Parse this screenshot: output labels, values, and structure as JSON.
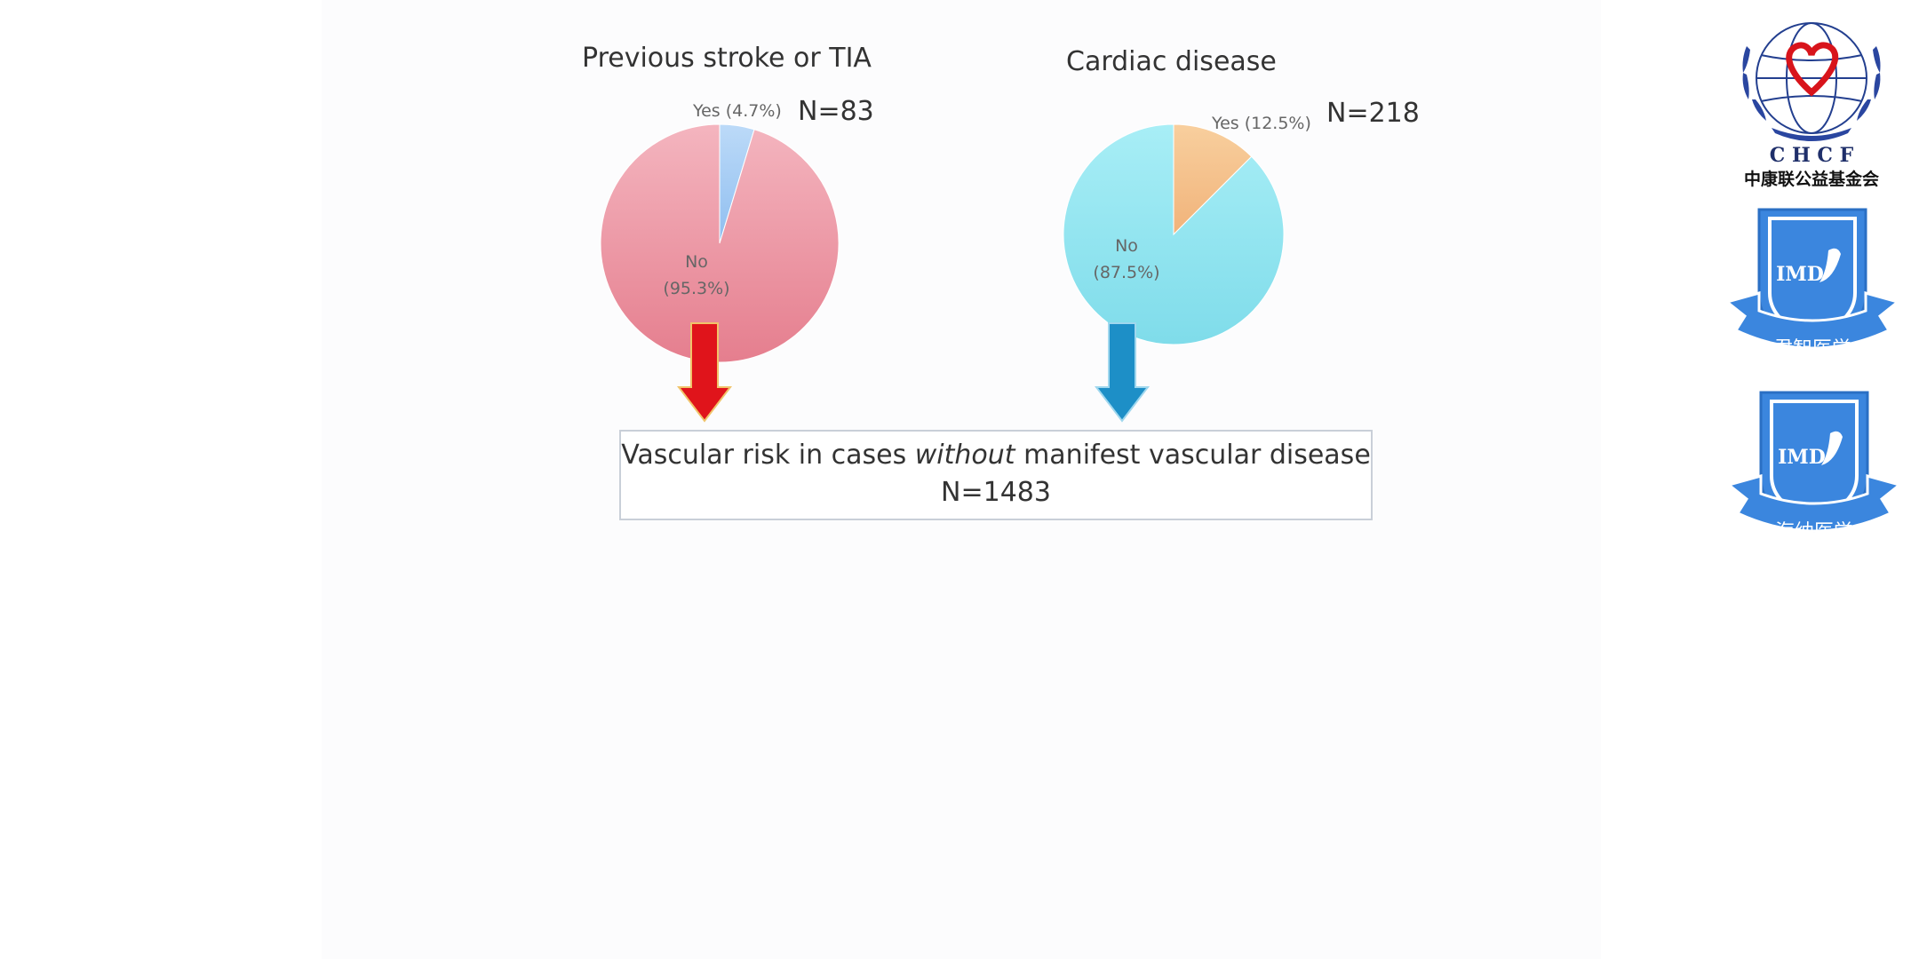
{
  "charts": {
    "stroke": {
      "title": "Previous stroke or TIA",
      "n_label": "N=83",
      "yes_label": "Yes (4.7%)",
      "no_label_line1": "No",
      "no_label_line2": "(95.3%)"
    },
    "cardiac": {
      "title": "Cardiac disease",
      "n_label": "N=218",
      "yes_label": "Yes (12.5%)",
      "no_label_line1": "No",
      "no_label_line2": "(87.5%)"
    }
  },
  "chart_data": [
    {
      "type": "pie",
      "title": "Previous stroke or TIA",
      "categories": [
        "Yes",
        "No"
      ],
      "values": [
        4.7,
        95.3
      ],
      "colors": [
        "#a9cdf6",
        "#ef9aa8"
      ],
      "n": 83
    },
    {
      "type": "pie",
      "title": "Cardiac disease",
      "categories": [
        "Yes",
        "No"
      ],
      "values": [
        12.5,
        87.5
      ],
      "colors": [
        "#f6c48e",
        "#8fe6f0"
      ],
      "n": 218
    }
  ],
  "result_box": {
    "text_before": "Vascular risk in cases ",
    "text_emphasis": "without",
    "text_after": " manifest vascular disease",
    "n_label": "N=1483"
  },
  "arrows": {
    "left_color": "#e0141b",
    "right_color": "#1d8fc7"
  },
  "logos": {
    "chcf_text": "C H C F",
    "chcf_name": "中康联公益基金会",
    "badge1_text": "IMD",
    "badge1_ribbon": "君智医学",
    "badge2_text": "IMD",
    "badge2_ribbon": "海纳医学"
  }
}
